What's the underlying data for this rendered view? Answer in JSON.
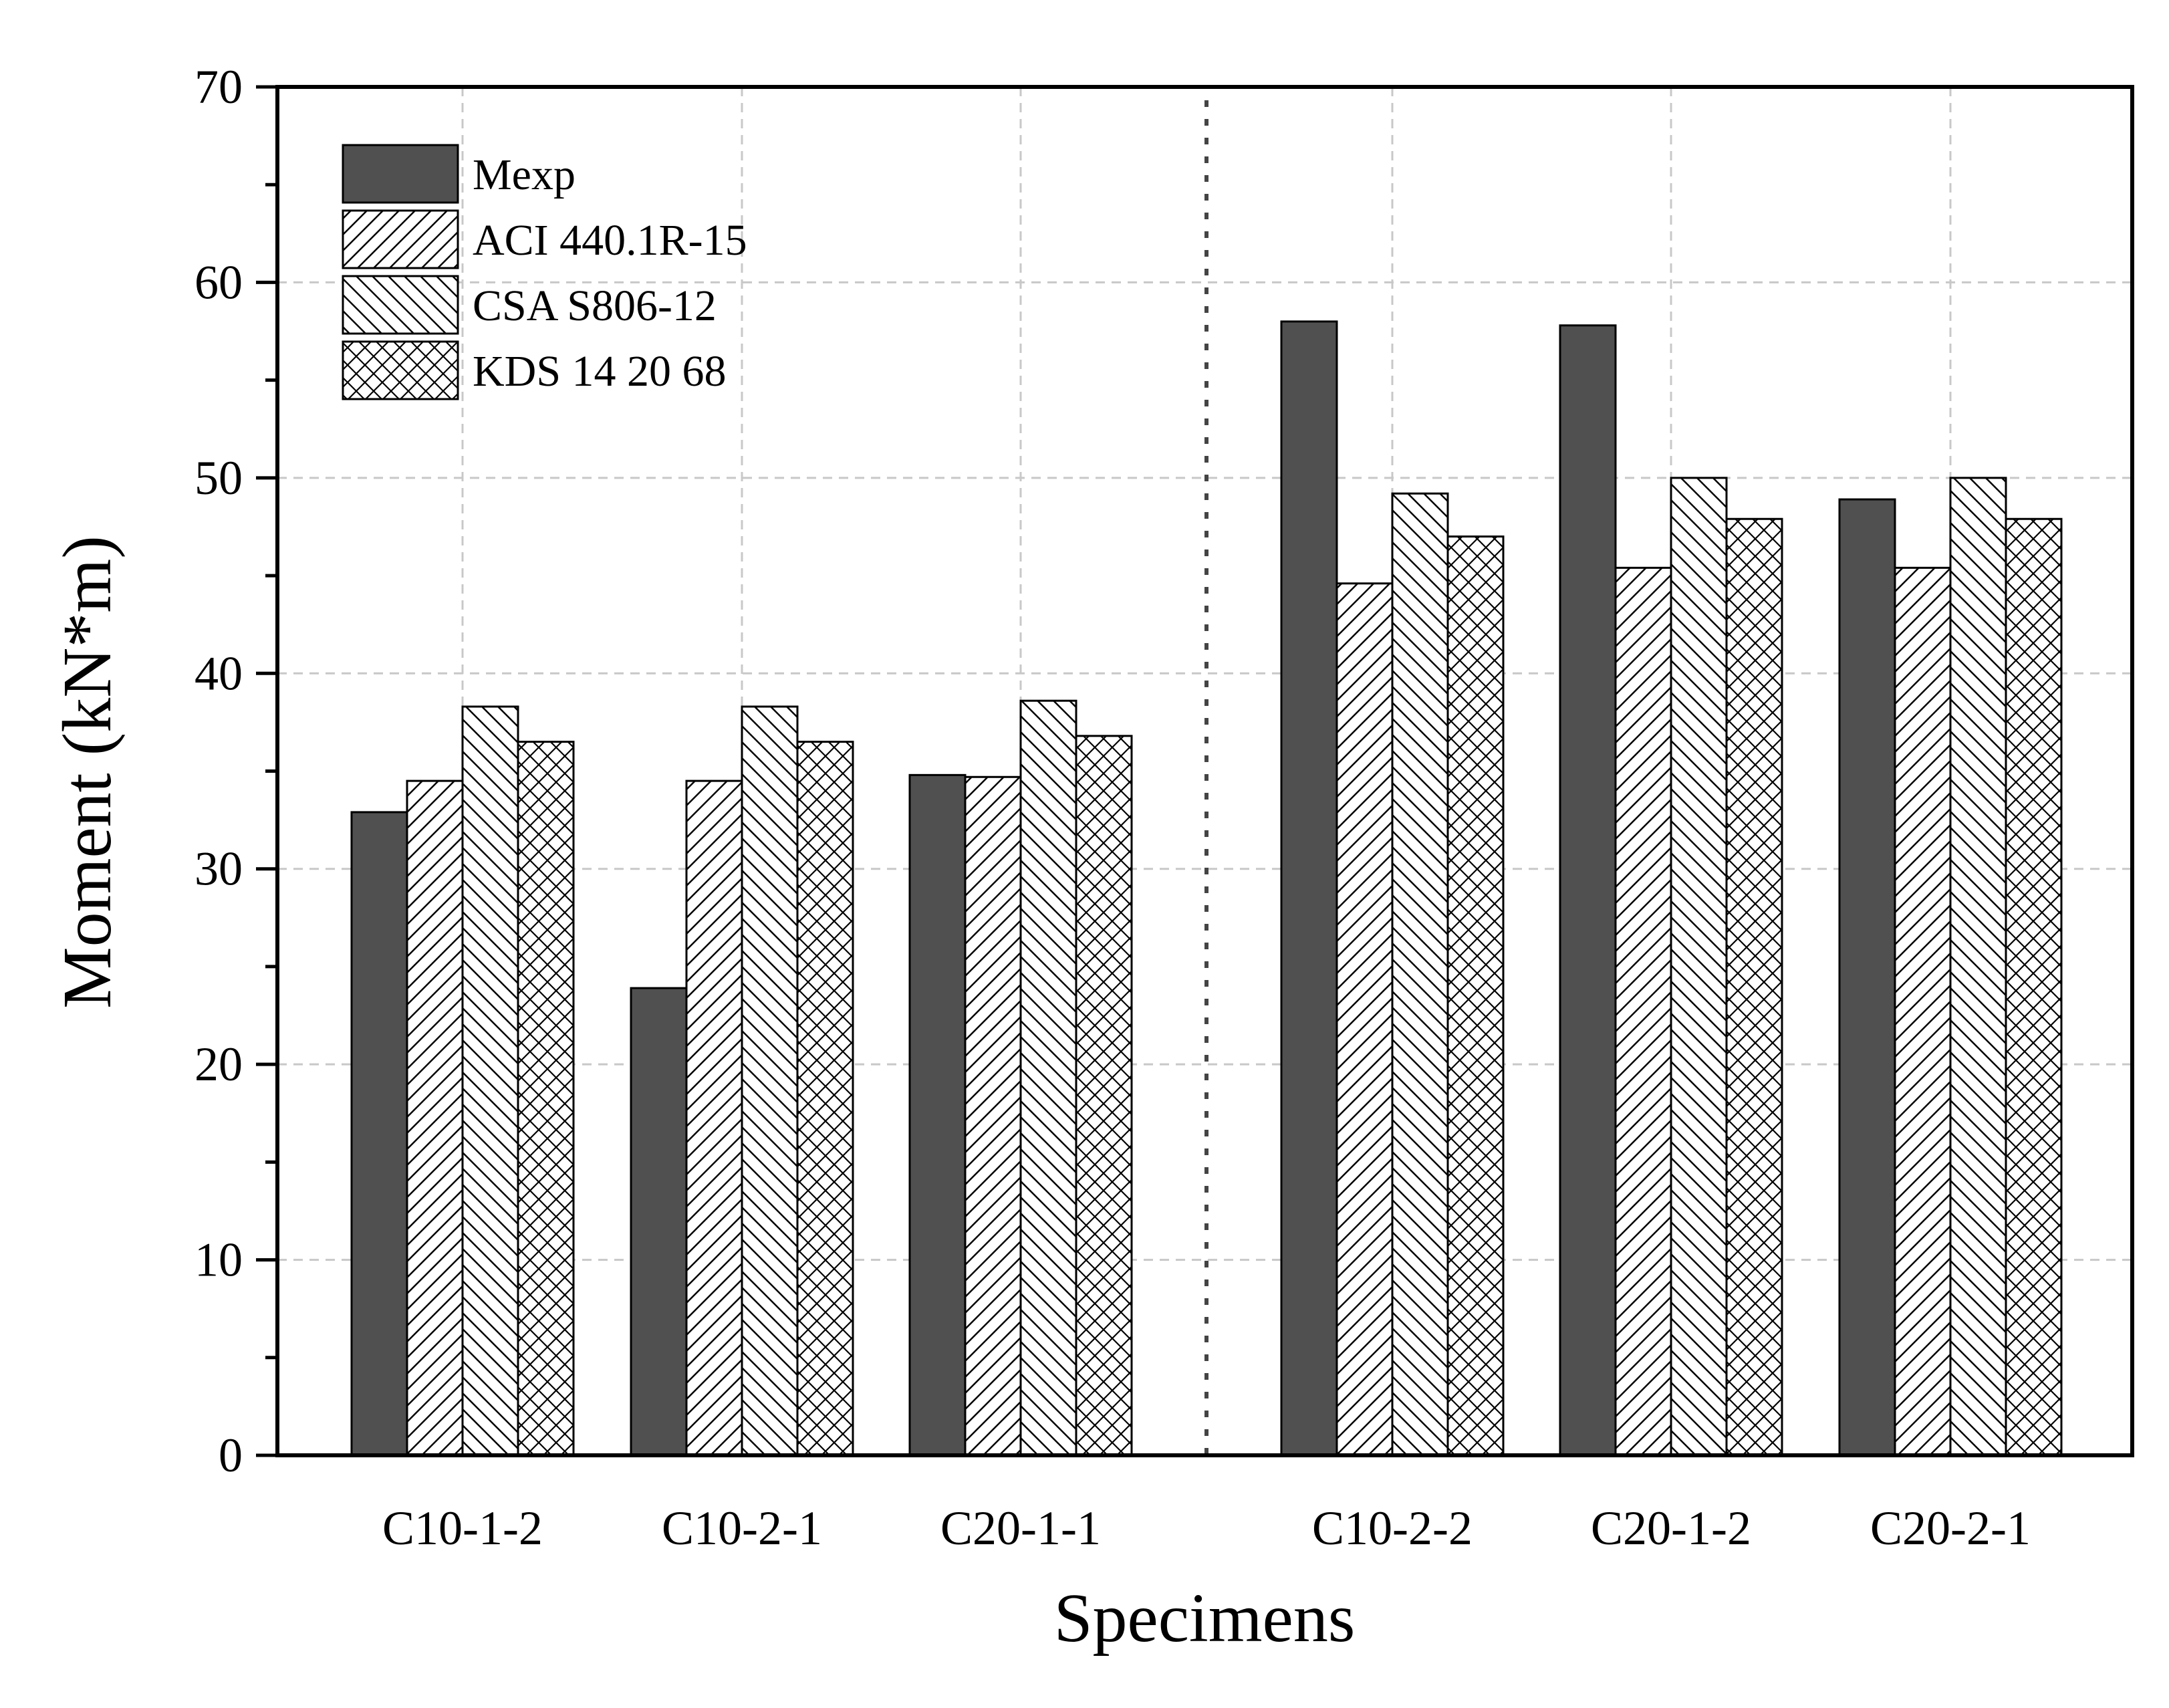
{
  "chart_data": {
    "type": "bar",
    "title": "",
    "xlabel": "Specimens",
    "ylabel": "Moment (kN*m)",
    "ylim": [
      0,
      70
    ],
    "yticks": [
      0,
      10,
      20,
      30,
      40,
      50,
      60,
      70
    ],
    "grid": true,
    "legend_position": "top-left",
    "categories": [
      "C10-1-2",
      "C10-2-1",
      "C20-1-1",
      "C10-2-2",
      "C20-1-2",
      "C20-2-1"
    ],
    "group_separator_after": "C20-1-1",
    "series": [
      {
        "name": "Mexp",
        "pattern": "solid",
        "values": [
          32.9,
          23.9,
          34.8,
          58.0,
          57.8,
          48.9
        ]
      },
      {
        "name": "ACI 440.1R-15",
        "pattern": "forward-hatch",
        "values": [
          34.5,
          34.5,
          34.7,
          44.6,
          45.4,
          45.4
        ]
      },
      {
        "name": "CSA S806-12",
        "pattern": "back-hatch",
        "values": [
          38.3,
          38.3,
          38.6,
          49.2,
          50.0,
          50.0
        ]
      },
      {
        "name": "KDS 14 20 68",
        "pattern": "cross-hatch",
        "values": [
          36.5,
          36.5,
          36.8,
          47.0,
          47.9,
          47.9
        ]
      }
    ],
    "colors": {
      "solid_fill": "#505050",
      "outline": "#000000",
      "grid": "#c8c8c8"
    }
  }
}
